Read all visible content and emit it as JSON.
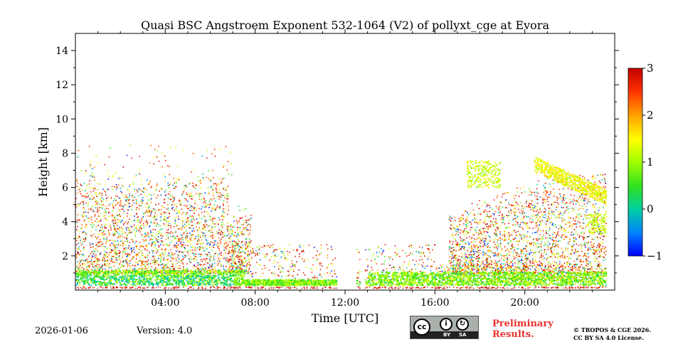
{
  "chart_data": {
    "type": "heatmap",
    "title": "Quasi BSC Angstroem Exponent 532-1064 (V2) of pollyxt_cge at Evora",
    "xlabel": "Time [UTC]",
    "ylabel": "Height [km]",
    "xlim_hours": [
      0,
      24
    ],
    "ylim_km": [
      0,
      15
    ],
    "x_ticks": [
      {
        "value": 4,
        "label": "04:00"
      },
      {
        "value": 8,
        "label": "08:00"
      },
      {
        "value": 12,
        "label": "12:00"
      },
      {
        "value": 16,
        "label": "16:00"
      },
      {
        "value": 20,
        "label": "20:00"
      }
    ],
    "y_ticks": [
      {
        "value": 2,
        "label": "2"
      },
      {
        "value": 4,
        "label": "4"
      },
      {
        "value": 6,
        "label": "6"
      },
      {
        "value": 8,
        "label": "8"
      },
      {
        "value": 10,
        "label": "10"
      },
      {
        "value": 12,
        "label": "12"
      },
      {
        "value": 14,
        "label": "14"
      }
    ],
    "colorbar": {
      "range": [
        -1,
        3
      ],
      "ticks": [
        {
          "value": 3,
          "label": "3"
        },
        {
          "value": 2,
          "label": "2"
        },
        {
          "value": 1,
          "label": "1"
        },
        {
          "value": 0,
          "label": "0"
        },
        {
          "value": -1,
          "label": "−1"
        }
      ],
      "colors": [
        "#0000ff",
        "#0080ff",
        "#00d0a0",
        "#30e020",
        "#a0ff00",
        "#ffff00",
        "#ffa000",
        "#ff3000",
        "#c00000"
      ]
    },
    "data_gaps_hours": [
      [
        11.6,
        12.5
      ],
      [
        12.65,
        12.85
      ]
    ],
    "features": [
      {
        "name": "boundary-layer",
        "t": [
          0,
          23.6
        ],
        "h": [
          0.2,
          1.2
        ],
        "value_range": [
          0,
          1.5
        ]
      },
      {
        "name": "noisy-residual",
        "t": [
          0,
          7.8
        ],
        "h": [
          1,
          7.2
        ],
        "value_range": [
          -1,
          3
        ]
      },
      {
        "name": "noisy-residual-afternoon",
        "t": [
          16.8,
          23.6
        ],
        "h": [
          1,
          6.8
        ],
        "value_range": [
          -1,
          3
        ]
      },
      {
        "name": "aerosol-layer",
        "t": [
          20.4,
          23.6
        ],
        "h": [
          4.8,
          7.6
        ],
        "value_range": [
          1,
          1.8
        ]
      }
    ]
  },
  "footer": {
    "date": "2026-01-06",
    "version": "Version: 4.0",
    "preliminary_line1": "Preliminary",
    "preliminary_line2": "Results.",
    "copyright_line1": "© TROPOS & CGE 2026.",
    "copyright_line2": "CC BY SA 4.0 License.",
    "license_cc": "cc",
    "license_by": "BY",
    "license_sa": "SA"
  }
}
